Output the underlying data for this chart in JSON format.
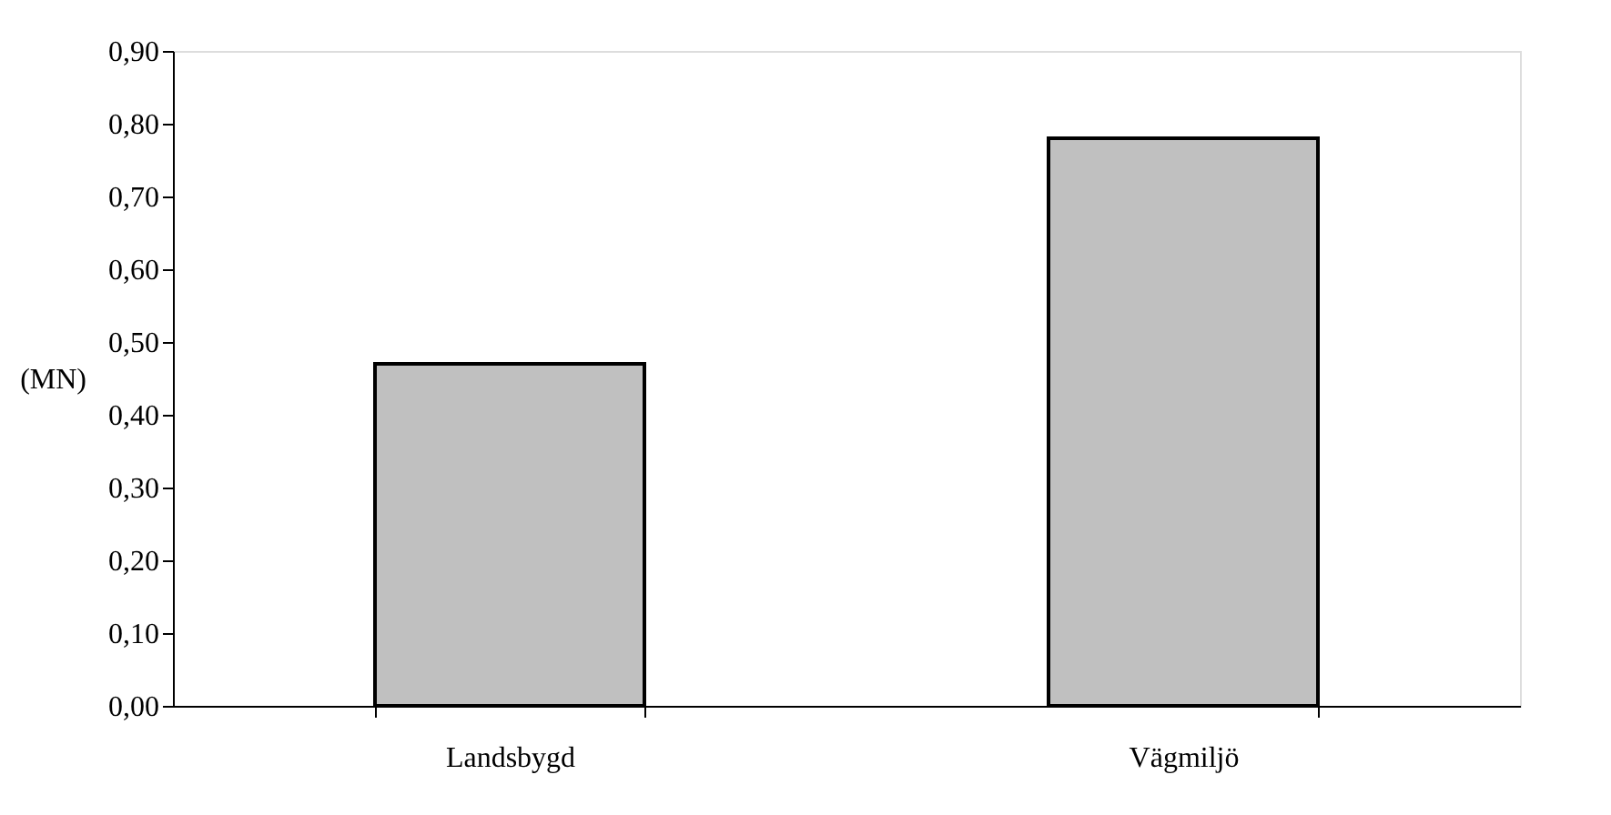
{
  "chart_data": {
    "type": "bar",
    "ylabel": "(MN)",
    "categories": [
      "Landsbygd",
      "Vägmiljö"
    ],
    "values": [
      0.47,
      0.78
    ],
    "color": "#c0c0c0",
    "ylim": [
      0,
      0.9
    ],
    "yticks": [
      {
        "value": 0,
        "label": "0,00"
      },
      {
        "value": 0.1,
        "label": "0,10"
      },
      {
        "value": 0.2,
        "label": "0,20"
      },
      {
        "value": 0.3,
        "label": "0,30"
      },
      {
        "value": 0.4,
        "label": "0,40"
      },
      {
        "value": 0.5,
        "label": "0,50"
      },
      {
        "value": 0.6,
        "label": "0,60"
      },
      {
        "value": 0.7,
        "label": "0,70"
      },
      {
        "value": 0.8,
        "label": "0,80"
      },
      {
        "value": 0.9,
        "label": "0,90"
      }
    ],
    "grid": false
  }
}
